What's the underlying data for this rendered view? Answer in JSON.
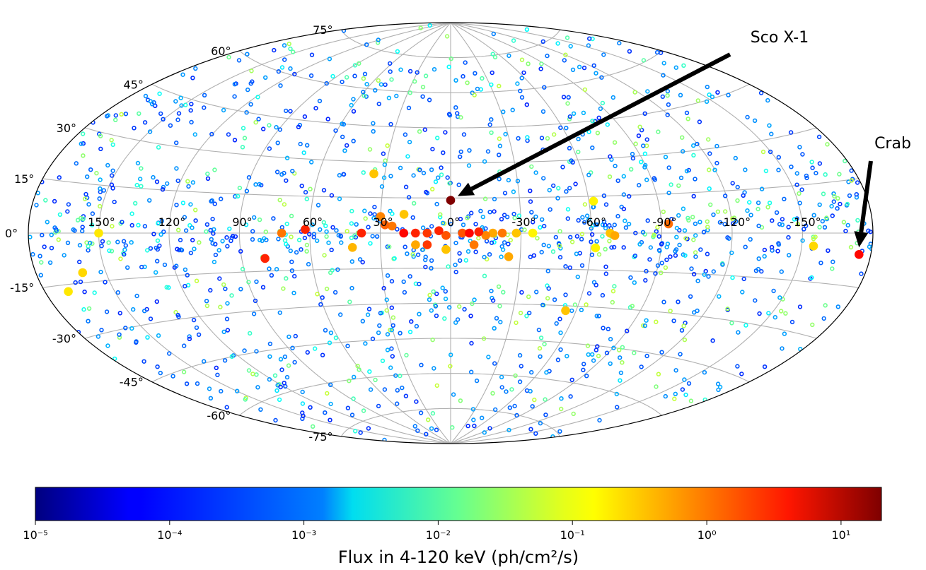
{
  "chart_data": {
    "type": "scatter",
    "projection": "aitoff",
    "coordinate_system": "galactic",
    "title": "",
    "longitude_ticks": [
      "150°",
      "120°",
      "90°",
      "60°",
      "30°",
      "0°",
      "-30°",
      "-60°",
      "-90°",
      "-120°",
      "-150°"
    ],
    "latitude_ticks": [
      "75°",
      "60°",
      "45°",
      "30°",
      "15°",
      "0°",
      "-15°",
      "-30°",
      "-45°",
      "-60°",
      "-75°"
    ],
    "grid": true,
    "annotations": [
      {
        "text": "Sco X-1",
        "target_l": 0,
        "target_b": 14
      },
      {
        "text": "Crab",
        "target_l": -175,
        "target_b": -6
      }
    ],
    "colorbar": {
      "label": "Flux in 4-120 keV (ph/cm²/s)",
      "scale": "log",
      "range": [
        1e-05,
        20
      ],
      "tick_labels": [
        "10⁻⁵",
        "10⁻⁴",
        "10⁻³",
        "10⁻²",
        "10⁻¹",
        "10⁰",
        "10¹"
      ],
      "colormap": "jet"
    },
    "background_sources": {
      "count_approx": 1500,
      "marker": "open circle",
      "flux_range": [
        0.0001,
        0.05
      ]
    },
    "bright_sources": [
      {
        "name": "Sco X-1",
        "l": 0,
        "b": 14,
        "flux": 20
      },
      {
        "name": "Crab",
        "l": -175,
        "b": -6,
        "flux": 3
      },
      {
        "l": 15,
        "b": 0,
        "flux": 2
      },
      {
        "l": 10,
        "b": 0,
        "flux": 1.5
      },
      {
        "l": 5,
        "b": 1,
        "flux": 2
      },
      {
        "l": 2,
        "b": -1,
        "flux": 1
      },
      {
        "l": -5,
        "b": 0,
        "flux": 1
      },
      {
        "l": -8,
        "b": 0,
        "flux": 3
      },
      {
        "l": -12,
        "b": 0.5,
        "flux": 2
      },
      {
        "l": -15,
        "b": -1,
        "flux": 0.5
      },
      {
        "l": -18,
        "b": 0,
        "flux": 0.3
      },
      {
        "l": -22,
        "b": 0,
        "flux": 0.6
      },
      {
        "l": -28,
        "b": 0,
        "flux": 0.2
      },
      {
        "l": -35,
        "b": 0,
        "flux": 0.1
      },
      {
        "l": 25,
        "b": 3,
        "flux": 0.6
      },
      {
        "l": 20,
        "b": 0,
        "flux": 3
      },
      {
        "l": 38,
        "b": 0,
        "flux": 2
      },
      {
        "l": 30,
        "b": 7,
        "flux": 0.5
      },
      {
        "l": 28,
        "b": 3.5,
        "flux": 0.8
      },
      {
        "l": 20,
        "b": 8,
        "flux": 0.2
      },
      {
        "l": 35,
        "b": 25,
        "flux": 0.2
      },
      {
        "l": 15,
        "b": -5,
        "flux": 0.3
      },
      {
        "l": 2,
        "b": -7,
        "flux": 0.2
      },
      {
        "l": 10,
        "b": -5,
        "flux": 1.5
      },
      {
        "l": -10,
        "b": -5,
        "flux": 0.6
      },
      {
        "l": -25,
        "b": -10,
        "flux": 0.3
      },
      {
        "l": -62,
        "b": -6,
        "flux": 0.1
      },
      {
        "l": -62,
        "b": 13,
        "flux": 0.1
      },
      {
        "l": -55,
        "b": -32,
        "flux": 0.2
      },
      {
        "l": -68,
        "b": 0,
        "flux": 0.2
      },
      {
        "l": -70,
        "b": -1,
        "flux": 0.3
      },
      {
        "l": -93,
        "b": 3.5,
        "flux": 0.7
      },
      {
        "l": -155,
        "b": -4,
        "flux": 0.15
      },
      {
        "l": 62,
        "b": 1.5,
        "flux": 2
      },
      {
        "l": 72,
        "b": 0,
        "flux": 0.6
      },
      {
        "l": 80,
        "b": -10,
        "flux": 2
      },
      {
        "l": 42,
        "b": -6,
        "flux": 0.25
      },
      {
        "l": 150,
        "b": 0,
        "flux": 0.12
      },
      {
        "l": 160,
        "b": -12,
        "flux": 0.15
      },
      {
        "l": 170,
        "b": -17,
        "flux": 0.12
      }
    ]
  }
}
